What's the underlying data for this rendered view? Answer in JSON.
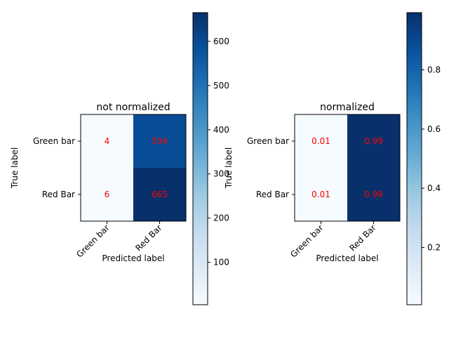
{
  "chart_data": [
    {
      "type": "heatmap",
      "title": "not normalized",
      "xlabel": "Predicted label",
      "ylabel": "True label",
      "x_categories": [
        "Green bar",
        "Red Bar"
      ],
      "y_categories": [
        "Green bar",
        "Red Bar"
      ],
      "values": [
        [
          4,
          594
        ],
        [
          6,
          665
        ]
      ],
      "cell_labels": [
        [
          "4",
          "594"
        ],
        [
          "6",
          "665"
        ]
      ],
      "x_tick_rotation_deg": 45,
      "colormap": "Blues",
      "value_range": [
        4,
        665
      ],
      "colorbar": {
        "range": [
          4,
          665
        ],
        "ticks": [
          100,
          200,
          300,
          400,
          500,
          600
        ],
        "tick_labels": [
          "100",
          "200",
          "300",
          "400",
          "500",
          "600"
        ]
      },
      "cell_text_color": "#ff0000"
    },
    {
      "type": "heatmap",
      "title": "normalized",
      "xlabel": "Predicted label",
      "ylabel": "True label",
      "x_categories": [
        "Green bar",
        "Red Bar"
      ],
      "y_categories": [
        "Green bar",
        "Red Bar"
      ],
      "values": [
        [
          0.01,
          0.99
        ],
        [
          0.01,
          0.99
        ]
      ],
      "cell_labels": [
        [
          "0.01",
          "0.99"
        ],
        [
          "0.01",
          "0.99"
        ]
      ],
      "x_tick_rotation_deg": 45,
      "colormap": "Blues",
      "value_range": [
        0.0067,
        0.9933
      ],
      "colorbar": {
        "range": [
          0.0067,
          0.9933
        ],
        "ticks": [
          0.2,
          0.4,
          0.6,
          0.8
        ],
        "tick_labels": [
          "0.2",
          "0.4",
          "0.6",
          "0.8"
        ]
      },
      "cell_text_color": "#ff0000"
    }
  ]
}
